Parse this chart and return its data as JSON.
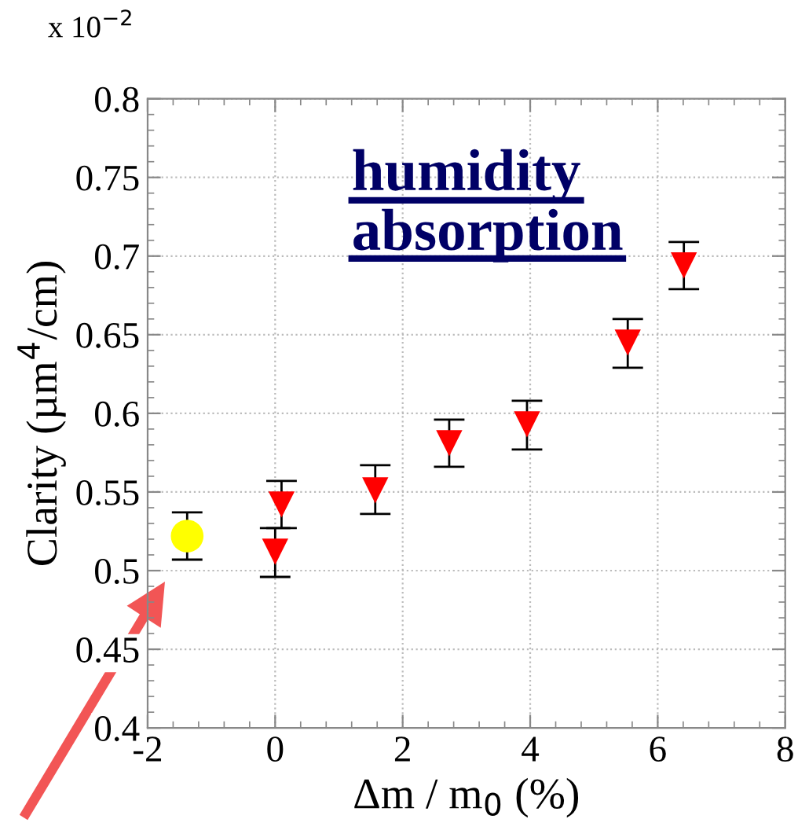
{
  "chart_data": {
    "type": "scatter",
    "xlabel": "Δm / m$_{0}$ (%)",
    "ylabel": "Clarity (µm$^{4}$/cm)",
    "annotations": [
      "x 10$^{−2}$",
      "humidity\nabsorption"
    ],
    "series": [
      {
        "color": "#ffff00",
        "marker": "circle",
        "x": [
          -1.38
        ],
        "values": [
          0.522
        ],
        "errors": [
          [
            0.507,
            0.537
          ]
        ]
      },
      {
        "color": "#ff0000",
        "marker": "triangle",
        "x": [
          0.0,
          0.1,
          1.57,
          2.73,
          3.95,
          5.53,
          6.41
        ],
        "values": [
          0.512,
          0.542,
          0.551,
          0.581,
          0.593,
          0.645,
          0.694
        ],
        "errors": [
          [
            0.496,
            0.527
          ],
          [
            0.527,
            0.557
          ],
          [
            0.536,
            0.567
          ],
          [
            0.566,
            0.596
          ],
          [
            0.577,
            0.608
          ],
          [
            0.629,
            0.66
          ],
          [
            0.679,
            0.709
          ]
        ]
      }
    ],
    "xlim": [
      -2,
      8
    ],
    "xticks": [
      -2,
      0,
      2,
      4,
      6,
      8
    ],
    "ylim": [
      0.4,
      0.8
    ],
    "yticks": [
      0.4,
      0.45,
      0.5,
      0.55,
      0.6,
      0.65,
      0.7,
      0.75,
      0.8
    ],
    "grid": true
  }
}
